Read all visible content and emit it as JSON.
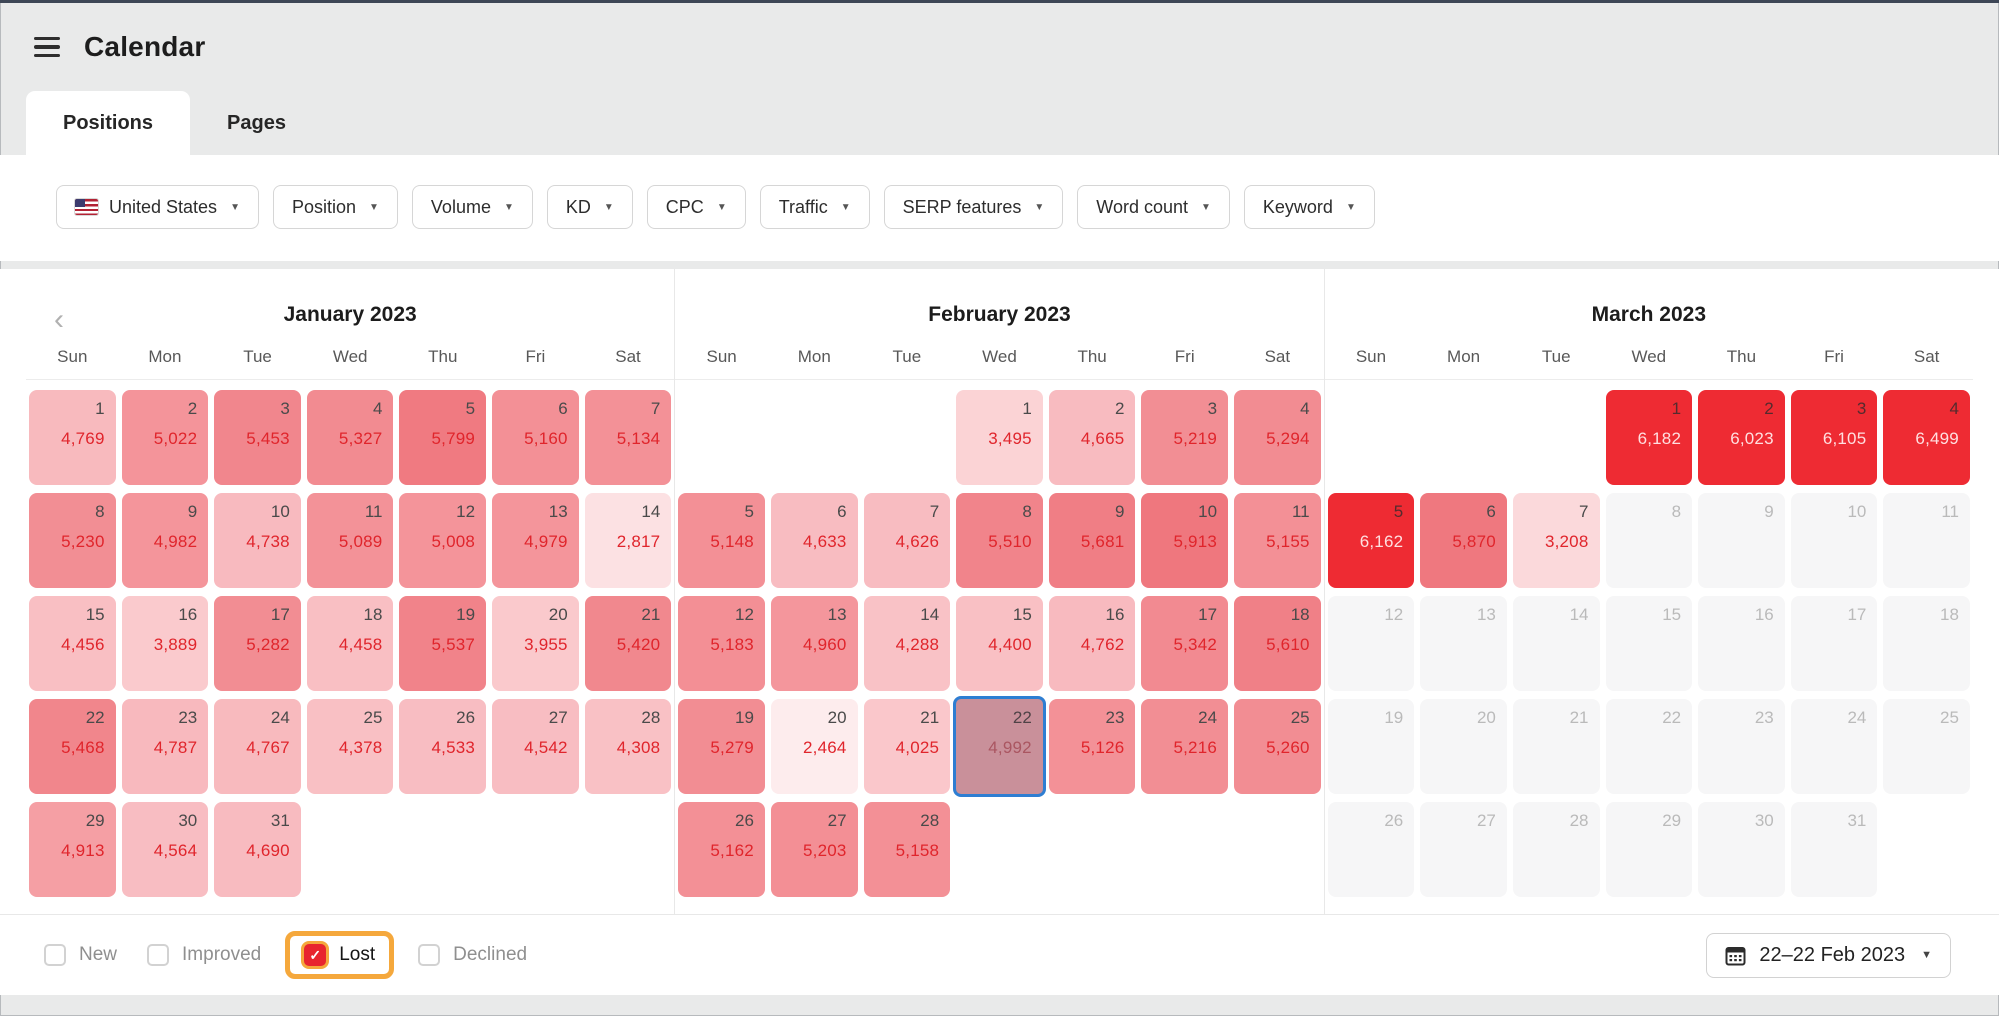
{
  "header": {
    "title": "Calendar"
  },
  "tabs": [
    {
      "label": "Positions",
      "active": true
    },
    {
      "label": "Pages",
      "active": false
    }
  ],
  "filters": [
    {
      "label": "United States",
      "flag": "us"
    },
    {
      "label": "Position"
    },
    {
      "label": "Volume"
    },
    {
      "label": "KD"
    },
    {
      "label": "CPC"
    },
    {
      "label": "Traffic"
    },
    {
      "label": "SERP features"
    },
    {
      "label": "Word count"
    },
    {
      "label": "Keyword"
    }
  ],
  "calendar": {
    "weekdays": [
      "Sun",
      "Mon",
      "Tue",
      "Wed",
      "Thu",
      "Fri",
      "Sat"
    ],
    "months": [
      {
        "title": "January 2023",
        "nav_back": true,
        "weeks": [
          [
            {
              "day": 1,
              "value": "4,769"
            },
            {
              "day": 2,
              "value": "5,022"
            },
            {
              "day": 3,
              "value": "5,453"
            },
            {
              "day": 4,
              "value": "5,327"
            },
            {
              "day": 5,
              "value": "5,799"
            },
            {
              "day": 6,
              "value": "5,160"
            },
            {
              "day": 7,
              "value": "5,134"
            }
          ],
          [
            {
              "day": 8,
              "value": "5,230"
            },
            {
              "day": 9,
              "value": "4,982"
            },
            {
              "day": 10,
              "value": "4,738"
            },
            {
              "day": 11,
              "value": "5,089"
            },
            {
              "day": 12,
              "value": "5,008"
            },
            {
              "day": 13,
              "value": "4,979"
            },
            {
              "day": 14,
              "value": "2,817"
            }
          ],
          [
            {
              "day": 15,
              "value": "4,456"
            },
            {
              "day": 16,
              "value": "3,889"
            },
            {
              "day": 17,
              "value": "5,282"
            },
            {
              "day": 18,
              "value": "4,458"
            },
            {
              "day": 19,
              "value": "5,537"
            },
            {
              "day": 20,
              "value": "3,955"
            },
            {
              "day": 21,
              "value": "5,420"
            }
          ],
          [
            {
              "day": 22,
              "value": "5,468"
            },
            {
              "day": 23,
              "value": "4,787"
            },
            {
              "day": 24,
              "value": "4,767"
            },
            {
              "day": 25,
              "value": "4,378"
            },
            {
              "day": 26,
              "value": "4,533"
            },
            {
              "day": 27,
              "value": "4,542"
            },
            {
              "day": 28,
              "value": "4,308"
            }
          ],
          [
            {
              "day": 29,
              "value": "4,913"
            },
            {
              "day": 30,
              "value": "4,564"
            },
            {
              "day": 31,
              "value": "4,690"
            },
            null,
            null,
            null,
            null
          ]
        ]
      },
      {
        "title": "February 2023",
        "nav_back": false,
        "weeks": [
          [
            null,
            null,
            null,
            {
              "day": 1,
              "value": "3,495"
            },
            {
              "day": 2,
              "value": "4,665"
            },
            {
              "day": 3,
              "value": "5,219"
            },
            {
              "day": 4,
              "value": "5,294"
            }
          ],
          [
            {
              "day": 5,
              "value": "5,148"
            },
            {
              "day": 6,
              "value": "4,633"
            },
            {
              "day": 7,
              "value": "4,626"
            },
            {
              "day": 8,
              "value": "5,510"
            },
            {
              "day": 9,
              "value": "5,681"
            },
            {
              "day": 10,
              "value": "5,913"
            },
            {
              "day": 11,
              "value": "5,155"
            }
          ],
          [
            {
              "day": 12,
              "value": "5,183"
            },
            {
              "day": 13,
              "value": "4,960"
            },
            {
              "day": 14,
              "value": "4,288"
            },
            {
              "day": 15,
              "value": "4,400"
            },
            {
              "day": 16,
              "value": "4,762"
            },
            {
              "day": 17,
              "value": "5,342"
            },
            {
              "day": 18,
              "value": "5,610"
            }
          ],
          [
            {
              "day": 19,
              "value": "5,279"
            },
            {
              "day": 20,
              "value": "2,464"
            },
            {
              "day": 21,
              "value": "4,025"
            },
            {
              "day": 22,
              "value": "4,992",
              "selected": true
            },
            {
              "day": 23,
              "value": "5,126"
            },
            {
              "day": 24,
              "value": "5,216"
            },
            {
              "day": 25,
              "value": "5,260"
            }
          ],
          [
            {
              "day": 26,
              "value": "5,162"
            },
            {
              "day": 27,
              "value": "5,203"
            },
            {
              "day": 28,
              "value": "5,158"
            },
            null,
            null,
            null,
            null
          ]
        ]
      },
      {
        "title": "March 2023",
        "nav_back": false,
        "weeks": [
          [
            null,
            null,
            null,
            {
              "day": 1,
              "value": "6,182"
            },
            {
              "day": 2,
              "value": "6,023"
            },
            {
              "day": 3,
              "value": "6,105"
            },
            {
              "day": 4,
              "value": "6,499"
            }
          ],
          [
            {
              "day": 5,
              "value": "6,162"
            },
            {
              "day": 6,
              "value": "5,870"
            },
            {
              "day": 7,
              "value": "3,208"
            },
            {
              "day": 8,
              "future": true
            },
            {
              "day": 9,
              "future": true
            },
            {
              "day": 10,
              "future": true
            },
            {
              "day": 11,
              "future": true
            }
          ],
          [
            {
              "day": 12,
              "future": true
            },
            {
              "day": 13,
              "future": true
            },
            {
              "day": 14,
              "future": true
            },
            {
              "day": 15,
              "future": true
            },
            {
              "day": 16,
              "future": true
            },
            {
              "day": 17,
              "future": true
            },
            {
              "day": 18,
              "future": true
            }
          ],
          [
            {
              "day": 19,
              "future": true
            },
            {
              "day": 20,
              "future": true
            },
            {
              "day": 21,
              "future": true
            },
            {
              "day": 22,
              "future": true
            },
            {
              "day": 23,
              "future": true
            },
            {
              "day": 24,
              "future": true
            },
            {
              "day": 25,
              "future": true
            }
          ],
          [
            {
              "day": 26,
              "future": true
            },
            {
              "day": 27,
              "future": true
            },
            {
              "day": 28,
              "future": true
            },
            {
              "day": 29,
              "future": true
            },
            {
              "day": 30,
              "future": true
            },
            {
              "day": 31,
              "future": true
            },
            null
          ]
        ]
      }
    ]
  },
  "footer": {
    "toggles": [
      {
        "label": "New",
        "checked": false
      },
      {
        "label": "Improved",
        "checked": false
      },
      {
        "label": "Lost",
        "checked": true,
        "highlighted": true
      },
      {
        "label": "Declined",
        "checked": false
      }
    ],
    "date_range": "22–22 Feb 2023"
  },
  "colors": {
    "accent_red": "#ee2b33",
    "value_red": "#e0252c",
    "selected_bg": "#c9909a",
    "selected_border": "#2e7ed2",
    "highlight_orange": "#f5a83c",
    "future_bg": "#f6f6f7",
    "hot_threshold": 6000,
    "heat_stops": [
      [
        2400,
        "#fdeeef"
      ],
      [
        2900,
        "#fcdfe1"
      ],
      [
        3500,
        "#fbd3d5"
      ],
      [
        4200,
        "#f9c3c7"
      ],
      [
        4800,
        "#f8b9be"
      ],
      [
        4950,
        "#f4969c"
      ],
      [
        5300,
        "#f28c92"
      ],
      [
        5700,
        "#f07d84"
      ],
      [
        5999,
        "#ef747b"
      ]
    ]
  }
}
